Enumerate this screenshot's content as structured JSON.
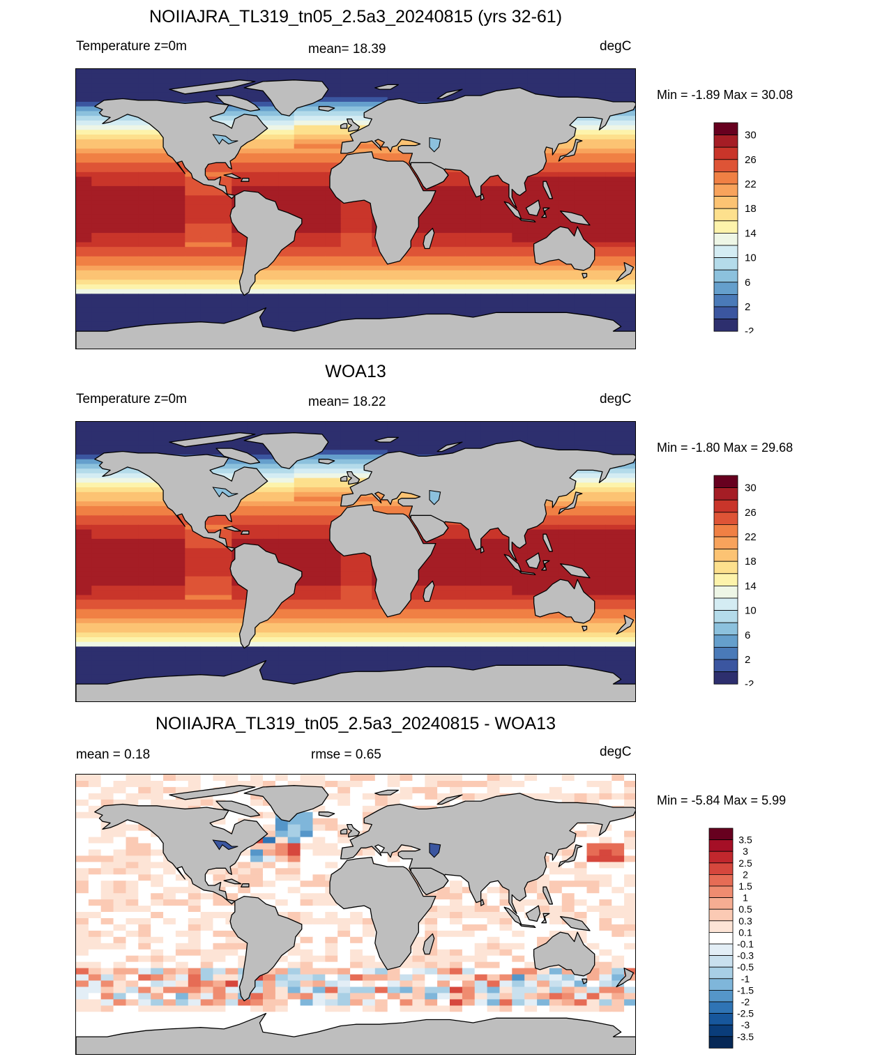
{
  "panels": [
    {
      "title": "NOIIAJRA_TL319_tn05_2.5a3_20240815 (yrs 32-61)",
      "left": "Temperature z=0m",
      "center": "mean=  18.39",
      "units": "degC",
      "minmax": "Min =  -1.89 Max =  30.08",
      "field": "sst"
    },
    {
      "title": "WOA13",
      "left": "Temperature z=0m",
      "center": "mean=  18.22",
      "units": "degC",
      "minmax": "Min =  -1.80 Max =  29.68",
      "field": "sst"
    },
    {
      "title": "NOIIAJRA_TL319_tn05_2.5a3_20240815 - WOA13",
      "left": "mean =   0.18",
      "center": "rmse =   0.65",
      "units": "degC",
      "minmax": "Min =  -5.84 Max =   5.99",
      "field": "diff"
    }
  ],
  "temp_colorbar": {
    "labels": [
      "30",
      "26",
      "22",
      "18",
      "14",
      "10",
      "6",
      "2",
      "-2"
    ],
    "colors": [
      "#67001f",
      "#a51d25",
      "#c9352a",
      "#de5436",
      "#f08044",
      "#f8a35c",
      "#fcc373",
      "#fde08d",
      "#fdf3ab",
      "#eef6e6",
      "#d4ecf3",
      "#b4dbea",
      "#8cc1dd",
      "#659fcc",
      "#4a7ab8",
      "#3b56a0",
      "#2d2f6e"
    ]
  },
  "diff_colorbar": {
    "labels": [
      "3.5",
      "3",
      "2.5",
      "2",
      "1.5",
      "1",
      "0.5",
      "0.3",
      "0.1",
      "-0.1",
      "-0.3",
      "-0.5",
      "-1",
      "-1.5",
      "-2",
      "-2.5",
      "-3",
      "-3.5"
    ],
    "colors": [
      "#67001f",
      "#a50f26",
      "#c1272d",
      "#d6473d",
      "#e66c55",
      "#ef8c70",
      "#f6ad92",
      "#fbcab4",
      "#fde4d6",
      "#ffffff",
      "#e3eef6",
      "#c9e0ee",
      "#a8cfe5",
      "#7fb6da",
      "#5596c9",
      "#2f74b5",
      "#17579c",
      "#0a3d7a",
      "#062856"
    ]
  }
}
